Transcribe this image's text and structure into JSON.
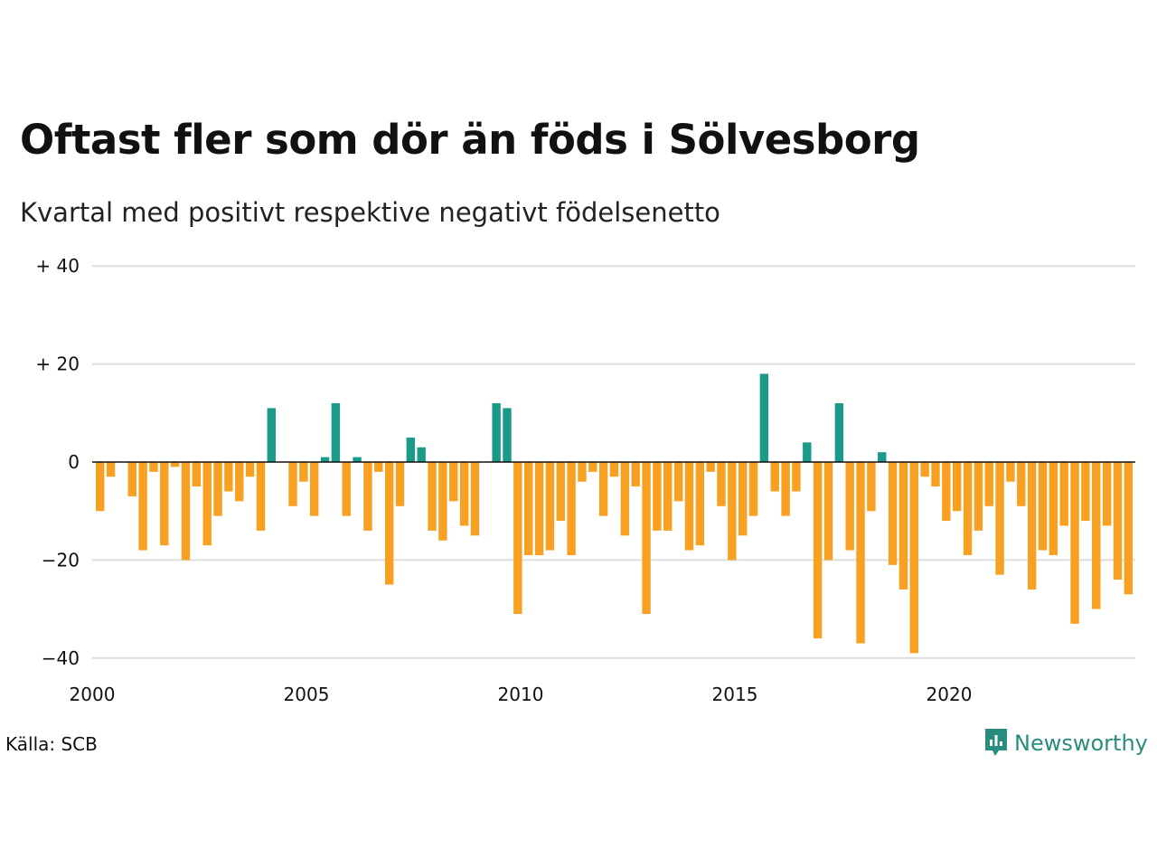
{
  "title": "Oftast fler som dör än föds i Sölvesborg",
  "subtitle": "Kvartal med positivt respektive negativt födelsenetto",
  "source": "Källa: SCB",
  "brand": {
    "name": "Newsworthy",
    "logo_icon": "newsworthy-logo-icon"
  },
  "colors": {
    "positive": "#1b9a8a",
    "negative": "#f7a021",
    "grid": "#dddddd",
    "zero_line": "#111111"
  },
  "chart_data": {
    "type": "bar",
    "x_start": 2000,
    "quarters_per_year": 4,
    "y_ticks": [
      {
        "value": 40,
        "label": "+ 40"
      },
      {
        "value": 20,
        "label": "+ 20"
      },
      {
        "value": 0,
        "label": "0"
      },
      {
        "value": -20,
        "label": "−20"
      },
      {
        "value": -40,
        "label": "−40"
      }
    ],
    "x_ticks": [
      {
        "year": 2000,
        "label": "2000"
      },
      {
        "year": 2005,
        "label": "2005"
      },
      {
        "year": 2010,
        "label": "2010"
      },
      {
        "year": 2015,
        "label": "2015"
      },
      {
        "year": 2020,
        "label": "2020"
      }
    ],
    "ylim": [
      -43,
      40
    ],
    "grid": true,
    "values": [
      -10,
      -3,
      0,
      -7,
      -18,
      -2,
      -17,
      -1,
      -20,
      -5,
      -17,
      -11,
      -6,
      -8,
      -3,
      -14,
      11,
      0,
      -9,
      -4,
      -11,
      1,
      12,
      -11,
      1,
      -14,
      -2,
      -25,
      -9,
      5,
      3,
      -14,
      -16,
      -8,
      -13,
      -15,
      0,
      12,
      11,
      -31,
      -19,
      -19,
      -18,
      -12,
      -19,
      -4,
      -2,
      -11,
      -3,
      -15,
      -5,
      -31,
      -14,
      -14,
      -8,
      -18,
      -17,
      -2,
      -9,
      -20,
      -15,
      -11,
      18,
      -6,
      -11,
      -6,
      4,
      -36,
      -20,
      12,
      -18,
      -37,
      -10,
      2,
      -21,
      -26,
      -39,
      -3,
      -5,
      -12,
      -10,
      -19,
      -14,
      -9,
      -23,
      -4,
      -9,
      -26,
      -18,
      -19,
      -13,
      -33,
      -12,
      -30,
      -13,
      -24,
      -27
    ]
  }
}
